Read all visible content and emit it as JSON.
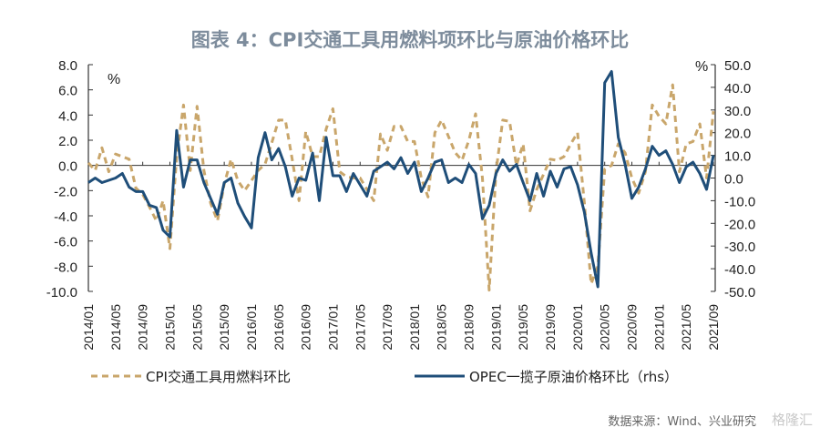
{
  "chart_data": {
    "type": "line",
    "title": "图表 4：CPI交通工具用燃料项环比与原油价格环比",
    "ylabel_left": "%",
    "ylabel_right": "%",
    "ylim_left": [
      -10,
      8
    ],
    "ylim_right": [
      -50,
      50
    ],
    "y_ticks_left": [
      "8.0",
      "6.0",
      "4.0",
      "2.0",
      "0.0",
      "-2.0",
      "-4.0",
      "-6.0",
      "-8.0",
      "-10.0"
    ],
    "y_ticks_right": [
      "50.0",
      "40.0",
      "30.0",
      "20.0",
      "10.0",
      "0.0",
      "-10.0",
      "-20.0",
      "-30.0",
      "-40.0",
      "-50.0"
    ],
    "x_start": "2014/01",
    "x_tick_labels": [
      "2014/01",
      "2014/05",
      "2014/09",
      "2015/01",
      "2015/05",
      "2015/09",
      "2016/01",
      "2016/05",
      "2016/09",
      "2017/01",
      "2017/05",
      "2017/09",
      "2018/01",
      "2018/05",
      "2018/09",
      "2019/01",
      "2019/05",
      "2019/09",
      "2020/01",
      "2020/05",
      "2020/09",
      "2021/01",
      "2021/05",
      "2021/09"
    ],
    "legend_position": "bottom",
    "series": [
      {
        "name": "CPI交通工具用燃料环比",
        "axis": "left",
        "style": "dashed",
        "color": "#c9a66b",
        "values": [
          0.2,
          -0.4,
          1.4,
          -0.5,
          0.9,
          0.7,
          0.5,
          -1.8,
          -2.3,
          -3.3,
          -4.4,
          -2.8,
          -6.6,
          0.7,
          4.8,
          -0.4,
          4.7,
          -0.4,
          -3,
          -4.4,
          -1.5,
          0.5,
          -1.2,
          -2,
          -1.2,
          -0.4,
          0.1,
          1.8,
          3.6,
          3.6,
          0.5,
          -2.8,
          2.7,
          0.7,
          0.7,
          2.9,
          4.5,
          -0.5,
          -0.9,
          -1,
          -1,
          -1.9,
          -2.8,
          2.5,
          1.2,
          3.1,
          3.1,
          1.9,
          1.9,
          -1,
          -2.5,
          2.6,
          3.6,
          2.3,
          1.0,
          0.4,
          2,
          4.1,
          -1,
          -9.9,
          -0.5,
          3.6,
          3.5,
          0,
          1.7,
          -3.6,
          -1.9,
          -0.7,
          0.5,
          0.4,
          0.7,
          1.7,
          2.6,
          -2.9,
          -9.4,
          -8,
          -0.3,
          0,
          1.7,
          1,
          -1,
          -2.2,
          -0.5,
          4.8,
          3.9,
          3.3,
          6.4,
          -0.5,
          1.7,
          1.9,
          3.3,
          -1,
          4.3
        ]
      },
      {
        "name": "OPEC一揽子原油价格环比（rhs）",
        "axis": "right",
        "style": "solid",
        "color": "#1f4e79",
        "values": [
          -2,
          0,
          -2,
          -1,
          0,
          2,
          -4,
          -6,
          -6,
          -12,
          -13,
          -23,
          -26,
          21,
          -4,
          8,
          8,
          -2,
          -9,
          -16,
          -2,
          0,
          -11,
          -17,
          -22,
          9,
          20,
          8,
          13,
          5,
          -8,
          0,
          -1,
          11,
          -10,
          18,
          1,
          1,
          -6,
          2,
          -3,
          -8,
          3,
          5,
          7,
          4,
          9,
          2,
          7,
          -6,
          0,
          7,
          8,
          -2,
          0,
          -2,
          6,
          2,
          -18,
          -12,
          2,
          8,
          3,
          6,
          -2,
          -10,
          2,
          -8,
          3,
          -4,
          4,
          5,
          -3,
          -15,
          -33,
          -48,
          42,
          47,
          18,
          6,
          -9,
          -4,
          4,
          14,
          10,
          12,
          6,
          -2,
          5,
          7,
          2,
          -5,
          10
        ]
      }
    ]
  },
  "source": "数据来源：Wind、兴业研究",
  "watermark": "格隆汇"
}
